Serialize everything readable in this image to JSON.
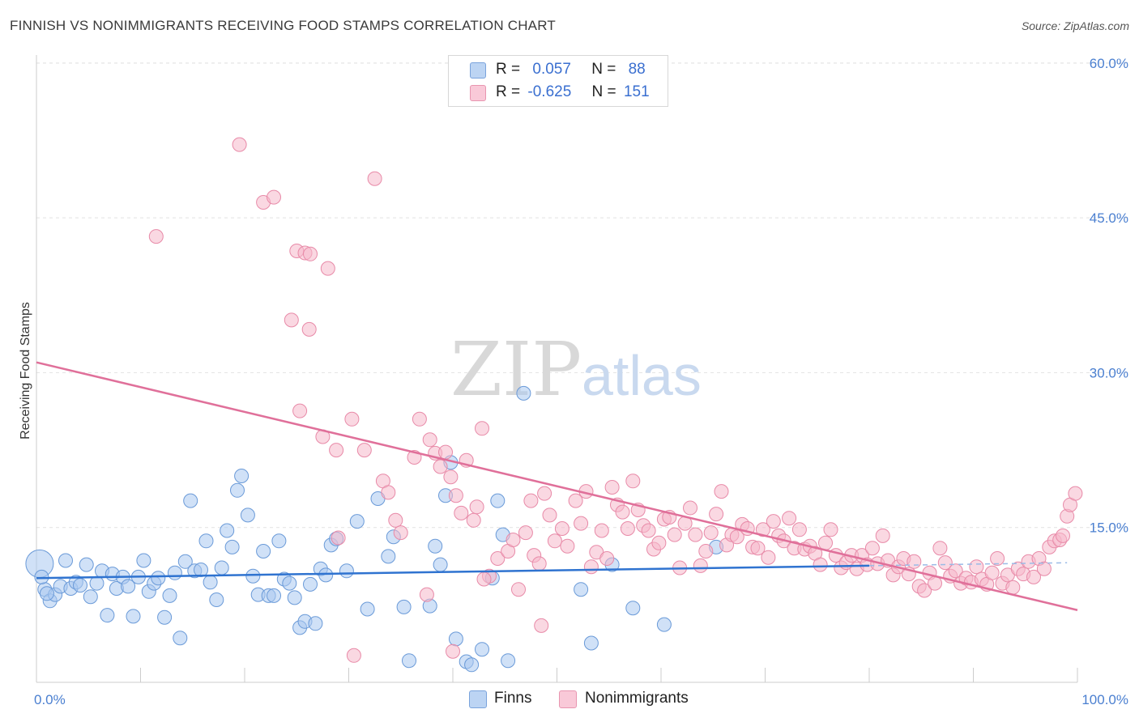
{
  "title": "FINNISH VS NONIMMIGRANTS RECEIVING FOOD STAMPS CORRELATION CHART",
  "source": "Source: ZipAtlas.com",
  "watermark": {
    "zip": "ZIP",
    "atlas": "atlas"
  },
  "legend": {
    "rows": [
      {
        "r_label": "R =",
        "r_value": "0.057",
        "n_label": "N =",
        "n_value": "88",
        "color": "#aac8f0"
      },
      {
        "r_label": "R =",
        "r_value": "-0.625",
        "n_label": "N =",
        "n_value": "151",
        "color": "#f6b8cb"
      }
    ]
  },
  "bottom_legend": {
    "finns": "Finns",
    "nonimmigrants": "Nonimmigrants"
  },
  "chart_data": {
    "type": "scatter",
    "title": "FINNISH VS NONIMMIGRANTS RECEIVING FOOD STAMPS CORRELATION CHART",
    "xlabel": "",
    "ylabel": "Receiving Food Stamps",
    "xlim": [
      0,
      100
    ],
    "ylim": [
      0,
      60
    ],
    "x_tick_labels": [
      "0.0%",
      "100.0%"
    ],
    "y_ticks": [
      15,
      30,
      45,
      60
    ],
    "y_tick_labels": [
      "15.0%",
      "30.0%",
      "45.0%",
      "60.0%"
    ],
    "grid": "horizontal dashed",
    "legend_placement": "top-center",
    "series": [
      {
        "name": "Finns",
        "color": "#aac8f0",
        "stroke": "#6a9ad8",
        "trend": {
          "x": [
            0,
            80
          ],
          "y": [
            10.1,
            11.3
          ],
          "color": "#2f73d0",
          "dashed_extension_to": 99
        },
        "points": [
          [
            0.3,
            11.5
          ],
          [
            0.8,
            9.0
          ],
          [
            1.3,
            7.9
          ],
          [
            1.8,
            8.5
          ],
          [
            2.3,
            9.3
          ],
          [
            2.8,
            11.8
          ],
          [
            3.3,
            9.1
          ],
          [
            3.8,
            9.7
          ],
          [
            4.2,
            9.4
          ],
          [
            4.8,
            11.4
          ],
          [
            5.2,
            8.3
          ],
          [
            5.8,
            9.6
          ],
          [
            6.3,
            10.8
          ],
          [
            6.8,
            6.5
          ],
          [
            7.3,
            10.5
          ],
          [
            7.7,
            9.1
          ],
          [
            8.3,
            10.2
          ],
          [
            8.8,
            9.3
          ],
          [
            9.3,
            6.4
          ],
          [
            9.8,
            10.2
          ],
          [
            10.3,
            11.8
          ],
          [
            10.8,
            8.8
          ],
          [
            11.3,
            9.6
          ],
          [
            11.7,
            10.1
          ],
          [
            12.3,
            6.3
          ],
          [
            12.8,
            8.4
          ],
          [
            13.3,
            10.6
          ],
          [
            13.8,
            4.3
          ],
          [
            14.3,
            11.7
          ],
          [
            14.8,
            17.6
          ],
          [
            15.2,
            10.8
          ],
          [
            15.8,
            10.9
          ],
          [
            16.3,
            13.7
          ],
          [
            16.7,
            9.7
          ],
          [
            17.3,
            8.0
          ],
          [
            17.8,
            11.1
          ],
          [
            18.3,
            14.7
          ],
          [
            18.8,
            13.1
          ],
          [
            19.3,
            18.6
          ],
          [
            19.7,
            20.0
          ],
          [
            20.3,
            16.2
          ],
          [
            20.8,
            10.3
          ],
          [
            21.3,
            8.5
          ],
          [
            21.8,
            12.7
          ],
          [
            22.3,
            8.4
          ],
          [
            22.8,
            8.4
          ],
          [
            23.3,
            13.7
          ],
          [
            23.8,
            10.0
          ],
          [
            24.3,
            9.6
          ],
          [
            24.8,
            8.2
          ],
          [
            25.3,
            5.3
          ],
          [
            25.8,
            5.9
          ],
          [
            26.3,
            9.5
          ],
          [
            26.8,
            5.7
          ],
          [
            27.3,
            11.0
          ],
          [
            27.8,
            10.4
          ],
          [
            28.3,
            13.3
          ],
          [
            28.8,
            13.9
          ],
          [
            29.8,
            10.8
          ],
          [
            30.8,
            15.6
          ],
          [
            31.8,
            7.1
          ],
          [
            32.8,
            17.8
          ],
          [
            33.8,
            12.2
          ],
          [
            34.3,
            14.1
          ],
          [
            35.3,
            7.3
          ],
          [
            35.8,
            2.1
          ],
          [
            37.8,
            7.4
          ],
          [
            38.3,
            13.2
          ],
          [
            38.8,
            11.4
          ],
          [
            39.3,
            18.1
          ],
          [
            39.8,
            21.3
          ],
          [
            40.3,
            4.2
          ],
          [
            41.3,
            2.0
          ],
          [
            41.8,
            1.7
          ],
          [
            42.8,
            3.2
          ],
          [
            43.8,
            10.1
          ],
          [
            44.3,
            17.6
          ],
          [
            44.8,
            14.3
          ],
          [
            45.3,
            2.1
          ],
          [
            46.8,
            28.0
          ],
          [
            52.3,
            9.0
          ],
          [
            53.3,
            3.8
          ],
          [
            55.3,
            11.4
          ],
          [
            57.3,
            7.2
          ],
          [
            60.3,
            5.6
          ],
          [
            65.3,
            13.1
          ],
          [
            0.5,
            10.2
          ],
          [
            1.0,
            8.6
          ]
        ]
      },
      {
        "name": "Nonimmigrants",
        "color": "#f6b8cb",
        "stroke": "#e88aa8",
        "trend": {
          "x": [
            0,
            100
          ],
          "y": [
            31.0,
            7.0
          ],
          "color": "#e0709a"
        },
        "points": [
          [
            11.5,
            43.2
          ],
          [
            19.5,
            52.1
          ],
          [
            21.8,
            46.5
          ],
          [
            22.8,
            47.0
          ],
          [
            24.5,
            35.1
          ],
          [
            25.0,
            41.8
          ],
          [
            25.8,
            41.6
          ],
          [
            26.3,
            41.5
          ],
          [
            26.2,
            34.2
          ],
          [
            28.0,
            40.1
          ],
          [
            25.3,
            26.3
          ],
          [
            27.5,
            23.8
          ],
          [
            28.8,
            22.5
          ],
          [
            30.3,
            25.5
          ],
          [
            31.5,
            22.5
          ],
          [
            32.5,
            48.8
          ],
          [
            33.3,
            19.5
          ],
          [
            33.8,
            18.4
          ],
          [
            34.5,
            15.7
          ],
          [
            35.0,
            14.5
          ],
          [
            36.3,
            21.8
          ],
          [
            36.8,
            25.5
          ],
          [
            37.8,
            23.5
          ],
          [
            38.3,
            22.2
          ],
          [
            38.8,
            20.9
          ],
          [
            39.3,
            22.3
          ],
          [
            39.8,
            19.9
          ],
          [
            40.3,
            18.1
          ],
          [
            40.8,
            16.4
          ],
          [
            41.3,
            21.5
          ],
          [
            42.0,
            15.7
          ],
          [
            42.3,
            17.0
          ],
          [
            42.8,
            24.6
          ],
          [
            43.5,
            10.3
          ],
          [
            44.3,
            12.0
          ],
          [
            45.3,
            12.7
          ],
          [
            45.8,
            13.8
          ],
          [
            46.3,
            9.0
          ],
          [
            47.0,
            14.5
          ],
          [
            47.8,
            12.3
          ],
          [
            47.5,
            17.6
          ],
          [
            48.3,
            11.5
          ],
          [
            48.8,
            18.3
          ],
          [
            49.3,
            16.2
          ],
          [
            49.8,
            13.7
          ],
          [
            50.5,
            14.9
          ],
          [
            51.0,
            13.2
          ],
          [
            51.8,
            17.6
          ],
          [
            52.3,
            15.4
          ],
          [
            52.8,
            18.5
          ],
          [
            53.3,
            11.2
          ],
          [
            53.8,
            12.6
          ],
          [
            54.3,
            14.7
          ],
          [
            54.8,
            12.0
          ],
          [
            55.3,
            18.9
          ],
          [
            55.8,
            17.2
          ],
          [
            56.3,
            16.5
          ],
          [
            56.8,
            14.9
          ],
          [
            57.3,
            19.5
          ],
          [
            57.8,
            16.7
          ],
          [
            58.3,
            15.2
          ],
          [
            58.8,
            14.7
          ],
          [
            59.3,
            12.9
          ],
          [
            59.8,
            13.5
          ],
          [
            60.3,
            15.8
          ],
          [
            60.8,
            16.0
          ],
          [
            61.3,
            14.3
          ],
          [
            61.8,
            11.1
          ],
          [
            62.3,
            15.4
          ],
          [
            62.8,
            16.9
          ],
          [
            63.3,
            14.3
          ],
          [
            63.8,
            11.3
          ],
          [
            64.3,
            12.7
          ],
          [
            64.8,
            14.5
          ],
          [
            65.3,
            16.3
          ],
          [
            65.8,
            18.5
          ],
          [
            66.3,
            13.3
          ],
          [
            66.8,
            14.3
          ],
          [
            67.3,
            14.1
          ],
          [
            67.8,
            15.3
          ],
          [
            68.3,
            14.9
          ],
          [
            68.8,
            13.1
          ],
          [
            69.3,
            13.0
          ],
          [
            69.8,
            14.8
          ],
          [
            70.3,
            12.1
          ],
          [
            70.8,
            15.6
          ],
          [
            71.3,
            14.2
          ],
          [
            71.8,
            13.7
          ],
          [
            72.3,
            15.9
          ],
          [
            72.8,
            13.0
          ],
          [
            73.3,
            14.8
          ],
          [
            73.8,
            12.9
          ],
          [
            74.3,
            13.2
          ],
          [
            74.8,
            12.5
          ],
          [
            75.3,
            11.4
          ],
          [
            75.8,
            13.5
          ],
          [
            76.3,
            14.8
          ],
          [
            76.8,
            12.3
          ],
          [
            77.3,
            11.1
          ],
          [
            77.8,
            11.6
          ],
          [
            78.3,
            12.3
          ],
          [
            78.8,
            11.0
          ],
          [
            79.3,
            12.3
          ],
          [
            79.8,
            11.4
          ],
          [
            80.3,
            13.0
          ],
          [
            80.8,
            11.5
          ],
          [
            81.3,
            14.2
          ],
          [
            81.8,
            11.8
          ],
          [
            82.3,
            10.4
          ],
          [
            82.8,
            11.2
          ],
          [
            83.3,
            12.0
          ],
          [
            83.8,
            10.5
          ],
          [
            84.3,
            11.7
          ],
          [
            84.8,
            9.3
          ],
          [
            85.3,
            8.9
          ],
          [
            85.8,
            10.6
          ],
          [
            86.3,
            9.6
          ],
          [
            86.8,
            13.0
          ],
          [
            87.3,
            11.6
          ],
          [
            87.8,
            10.3
          ],
          [
            88.3,
            10.8
          ],
          [
            88.8,
            9.6
          ],
          [
            89.3,
            10.1
          ],
          [
            89.8,
            9.7
          ],
          [
            90.3,
            11.2
          ],
          [
            90.8,
            10.0
          ],
          [
            91.3,
            9.5
          ],
          [
            91.8,
            10.6
          ],
          [
            92.3,
            12.0
          ],
          [
            92.8,
            9.6
          ],
          [
            93.3,
            10.4
          ],
          [
            93.8,
            9.2
          ],
          [
            94.3,
            11.0
          ],
          [
            94.8,
            10.5
          ],
          [
            95.3,
            11.7
          ],
          [
            95.8,
            10.2
          ],
          [
            96.3,
            12.0
          ],
          [
            96.8,
            11.0
          ],
          [
            97.3,
            13.1
          ],
          [
            97.8,
            13.7
          ],
          [
            98.3,
            13.8
          ],
          [
            98.6,
            14.2
          ],
          [
            99.0,
            16.1
          ],
          [
            99.3,
            17.2
          ],
          [
            99.8,
            18.3
          ],
          [
            43.0,
            10.0
          ],
          [
            48.5,
            5.5
          ],
          [
            37.5,
            8.5
          ],
          [
            40.0,
            3.0
          ],
          [
            30.5,
            2.6
          ],
          [
            29.0,
            14.0
          ]
        ]
      }
    ]
  }
}
